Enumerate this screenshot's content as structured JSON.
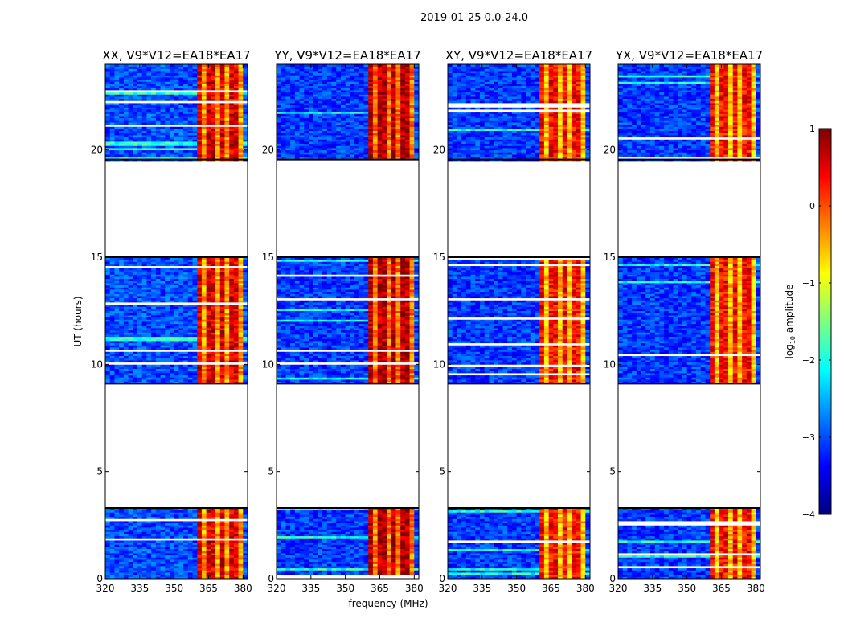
{
  "figure": {
    "suptitle": "2019-01-25 0.0-24.0",
    "xlabel": "frequency (MHz)",
    "ylabel": "UT (hours)"
  },
  "colorbar": {
    "label_prefix": "log",
    "label_sub": "10",
    "label_suffix": " amplitude",
    "range": [
      -4,
      1
    ],
    "ticks": [
      1,
      0,
      -1,
      -2,
      -3,
      -4
    ],
    "tick_labels": [
      "1",
      "0",
      "−1",
      "−2",
      "−3",
      "−4"
    ],
    "colormap": "jet",
    "colors": [
      "#00007f",
      "#0000ff",
      "#007fff",
      "#00ffff",
      "#7fff7f",
      "#ffff00",
      "#ff7f00",
      "#ff0000",
      "#7f0000"
    ]
  },
  "chart_data": {
    "type": "heatmap",
    "x_range": [
      320,
      382
    ],
    "y_range": [
      0,
      24
    ],
    "x_ticks": [
      320,
      335,
      350,
      365,
      380
    ],
    "x_tick_labels": [
      "320",
      "335",
      "350",
      "365",
      "380"
    ],
    "y_ticks": [
      0,
      5,
      10,
      15,
      20
    ],
    "y_tick_labels": [
      "0",
      "5",
      "10",
      "15",
      "20"
    ],
    "data_blocks_ut": [
      [
        0,
        3.3
      ],
      [
        9.1,
        15.0
      ],
      [
        19.55,
        24.0
      ]
    ],
    "no_data_gaps_ut": [
      [
        3.3,
        9.1
      ],
      [
        15.0,
        19.55
      ]
    ],
    "high_amplitude_band_mhz": [
      360,
      379
    ],
    "panels": [
      {
        "title": "XX, V9*V12=EA18*EA17",
        "band_level_log10": 0.2,
        "background_level_log10": -3.0
      },
      {
        "title": "YY, V9*V12=EA18*EA17",
        "band_level_log10": 0.4,
        "background_level_log10": -3.1
      },
      {
        "title": "XY, V9*V12=EA18*EA17",
        "band_level_log10": 0.0,
        "background_level_log10": -3.1
      },
      {
        "title": "YX, V9*V12=EA18*EA17",
        "band_level_log10": 0.0,
        "background_level_log10": -3.1
      }
    ]
  }
}
